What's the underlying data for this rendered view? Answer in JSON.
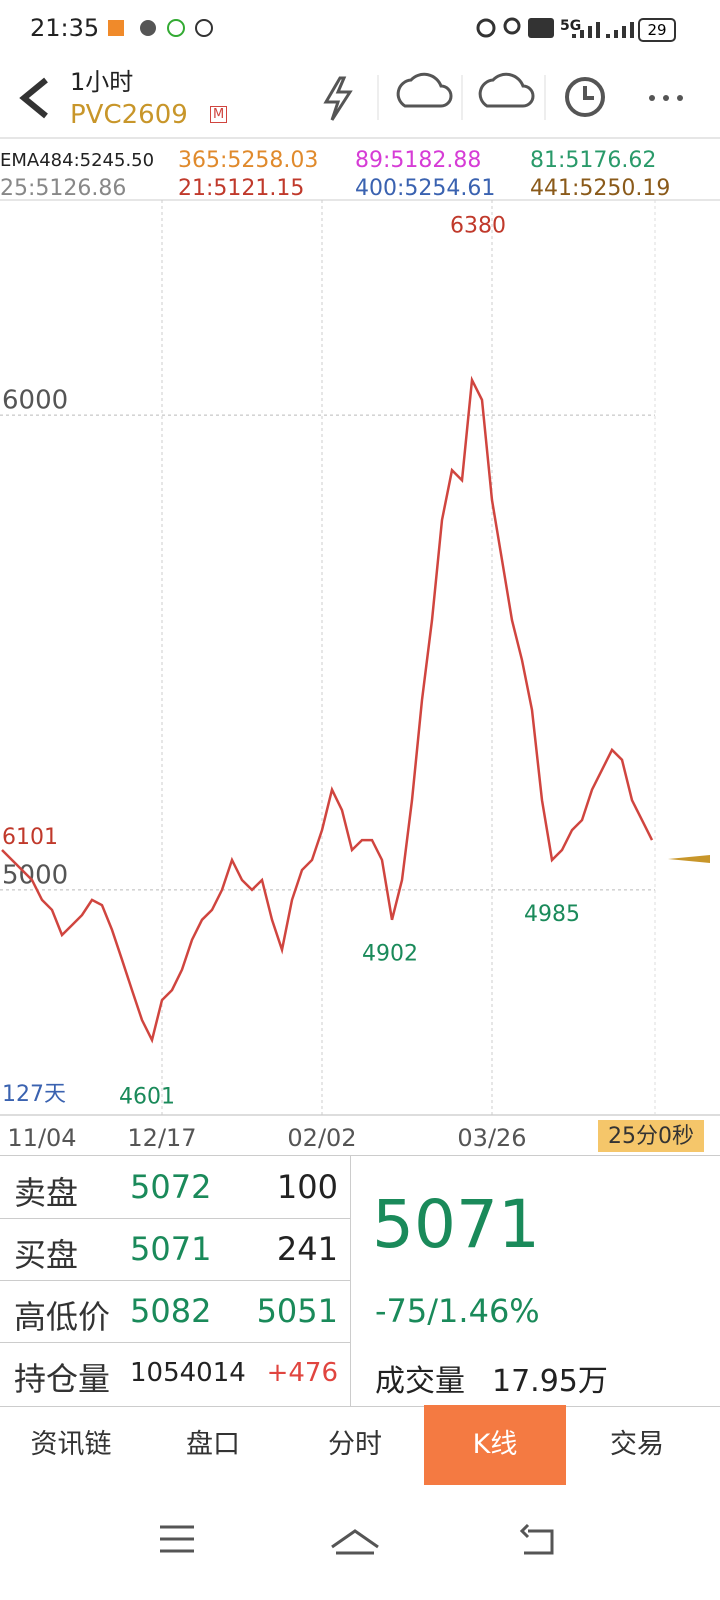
{
  "status_bar": {
    "time": "21:35",
    "network": "5G",
    "battery": "29"
  },
  "header": {
    "period": "1小时",
    "symbol": "PVC2609",
    "badge": "M"
  },
  "chart_data": {
    "type": "line",
    "indicators": [
      {
        "label": "EMA484:5245.50",
        "color": "#222222"
      },
      {
        "label": "365:5258.03",
        "color": "#e08a2c"
      },
      {
        "label": "89:5182.88",
        "color": "#d63cd6"
      },
      {
        "label": "81:5176.62",
        "color": "#2a9a6a"
      },
      {
        "label": "25:5126.86",
        "color": "#888888"
      },
      {
        "label": "21:5121.15",
        "color": "#c0392b"
      },
      {
        "label": "400:5254.61",
        "color": "#3a62b0"
      },
      {
        "label": "441:5250.19",
        "color": "#8a5a1a"
      }
    ],
    "categories": [
      null,
      null,
      null,
      null,
      "11/04",
      null,
      null,
      null,
      null,
      null,
      null,
      null,
      null,
      null,
      null,
      null,
      "12/17",
      null,
      null,
      null,
      null,
      null,
      null,
      null,
      null,
      null,
      null,
      null,
      null,
      null,
      null,
      null,
      "02/02",
      null,
      null,
      null,
      null,
      null,
      null,
      null,
      null,
      null,
      null,
      null,
      null,
      null,
      null,
      null,
      null,
      "03/26",
      null,
      null,
      null,
      null,
      null,
      null,
      null,
      null,
      null,
      null,
      null,
      null,
      null,
      null,
      null,
      null
    ],
    "values": [
      5084,
      5063,
      5042,
      5021,
      4979,
      4958,
      4905,
      4926,
      4947,
      4979,
      4968,
      4916,
      4853,
      4789,
      4726,
      4684,
      4768,
      4789,
      4832,
      4895,
      4937,
      4958,
      5000,
      5063,
      5021,
      5000,
      5021,
      4937,
      4874,
      4979,
      5042,
      5063,
      5126,
      5211,
      5168,
      5084,
      5105,
      5105,
      5063,
      4937,
      5021,
      5189,
      5400,
      5568,
      5779,
      5884,
      5863,
      6074,
      6032,
      5821,
      5695,
      5568,
      5484,
      5379,
      5189,
      5063,
      5084,
      5126,
      5147,
      5211,
      5253,
      5295,
      5274,
      5189,
      5147,
      5105
    ],
    "color": "#d0453f",
    "ylim": [
      4526,
      6453
    ],
    "yticks": [
      5000,
      6000
    ],
    "grid": true,
    "annotations": [
      6380,
      4601,
      4902,
      4985
    ],
    "notes": [
      "6101",
      "127天"
    ],
    "countdown": "25分0秒"
  },
  "quote": {
    "rows": [
      [
        "卖盘",
        "5072",
        "100"
      ],
      [
        "买盘",
        "5071",
        "241"
      ],
      [
        "高低价",
        "5082",
        "5051"
      ],
      [
        "持仓量",
        "1054014",
        "+476"
      ]
    ],
    "last": "5071",
    "change": "-75/1.46%",
    "volume_label": "成交量",
    "volume": "17.95万"
  },
  "tabs": [
    "资讯链",
    "盘口",
    "分时",
    "K线",
    "交易"
  ]
}
